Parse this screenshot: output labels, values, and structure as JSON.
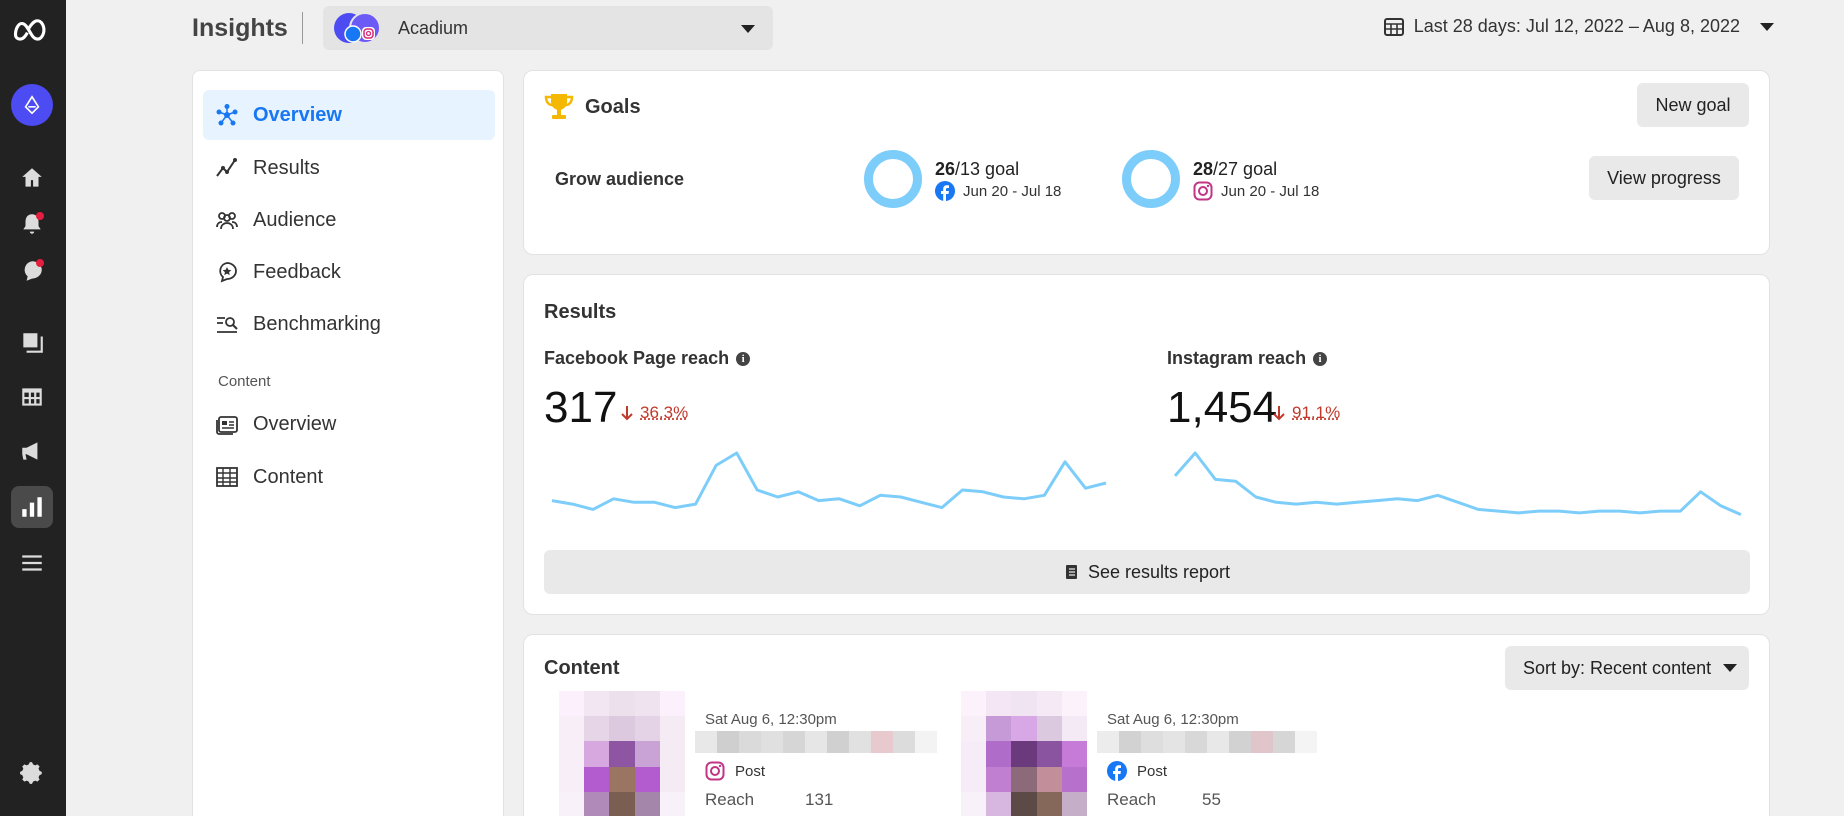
{
  "header": {
    "title": "Insights",
    "account_name": "Acadium",
    "date_range": "Last 28 days: Jul 12, 2022 – Aug 8, 2022"
  },
  "sidenav": {
    "items": [
      {
        "label": "Overview",
        "icon": "overview-icon",
        "active": true
      },
      {
        "label": "Results",
        "icon": "results-icon"
      },
      {
        "label": "Audience",
        "icon": "audience-icon"
      },
      {
        "label": "Feedback",
        "icon": "feedback-icon"
      },
      {
        "label": "Benchmarking",
        "icon": "benchmarking-icon"
      }
    ],
    "section_label": "Content",
    "content_items": [
      {
        "label": "Overview",
        "icon": "content-overview-icon"
      },
      {
        "label": "Content",
        "icon": "table-icon"
      }
    ]
  },
  "goals": {
    "title": "Goals",
    "new_goal_label": "New goal",
    "goal_name": "Grow audience",
    "view_progress_label": "View progress",
    "facebook": {
      "value": "26",
      "target": "/13 goal",
      "dates": "Jun 20 - Jul 18"
    },
    "instagram": {
      "value": "28",
      "target": "/27 goal",
      "dates": "Jun 20 - Jul 18"
    }
  },
  "results": {
    "title": "Results",
    "facebook_label": "Facebook Page reach",
    "facebook_value": "317",
    "facebook_delta": "36.3%",
    "instagram_label": "Instagram reach",
    "instagram_value": "1,454",
    "instagram_delta": "91.1%",
    "report_label": "See results report"
  },
  "chart_data": [
    {
      "type": "line",
      "series": [
        {
          "values": [
            19,
            17,
            14,
            20,
            18,
            18,
            15,
            17,
            39,
            46,
            25,
            21,
            24,
            19,
            20,
            16,
            22,
            21,
            18,
            15,
            25,
            24,
            21,
            20,
            22,
            41,
            26,
            29
          ]
        }
      ]
    },
    {
      "type": "line",
      "series": [
        {
          "values": [
            33,
            46,
            31,
            30,
            21,
            18,
            17,
            18,
            17,
            18,
            19,
            20,
            19,
            22,
            18,
            14,
            13,
            12,
            13,
            13,
            12,
            13,
            13,
            12,
            13,
            13,
            24,
            16,
            11
          ]
        }
      ]
    }
  ],
  "content": {
    "title": "Content",
    "sort_label": "Sort by: Recent content",
    "posts": [
      {
        "date": "Sat Aug 6, 12:30pm",
        "type": "Post",
        "platform": "instagram",
        "reach_label": "Reach",
        "reach_value": "131"
      },
      {
        "date": "Sat Aug 6, 12:30pm",
        "type": "Post",
        "platform": "facebook",
        "reach_label": "Reach",
        "reach_value": "55"
      }
    ]
  },
  "colors": {
    "accent": "#1877f2",
    "ring": "#7dcdfa",
    "spark": "#7dcdfa",
    "negative": "#c0392b"
  }
}
